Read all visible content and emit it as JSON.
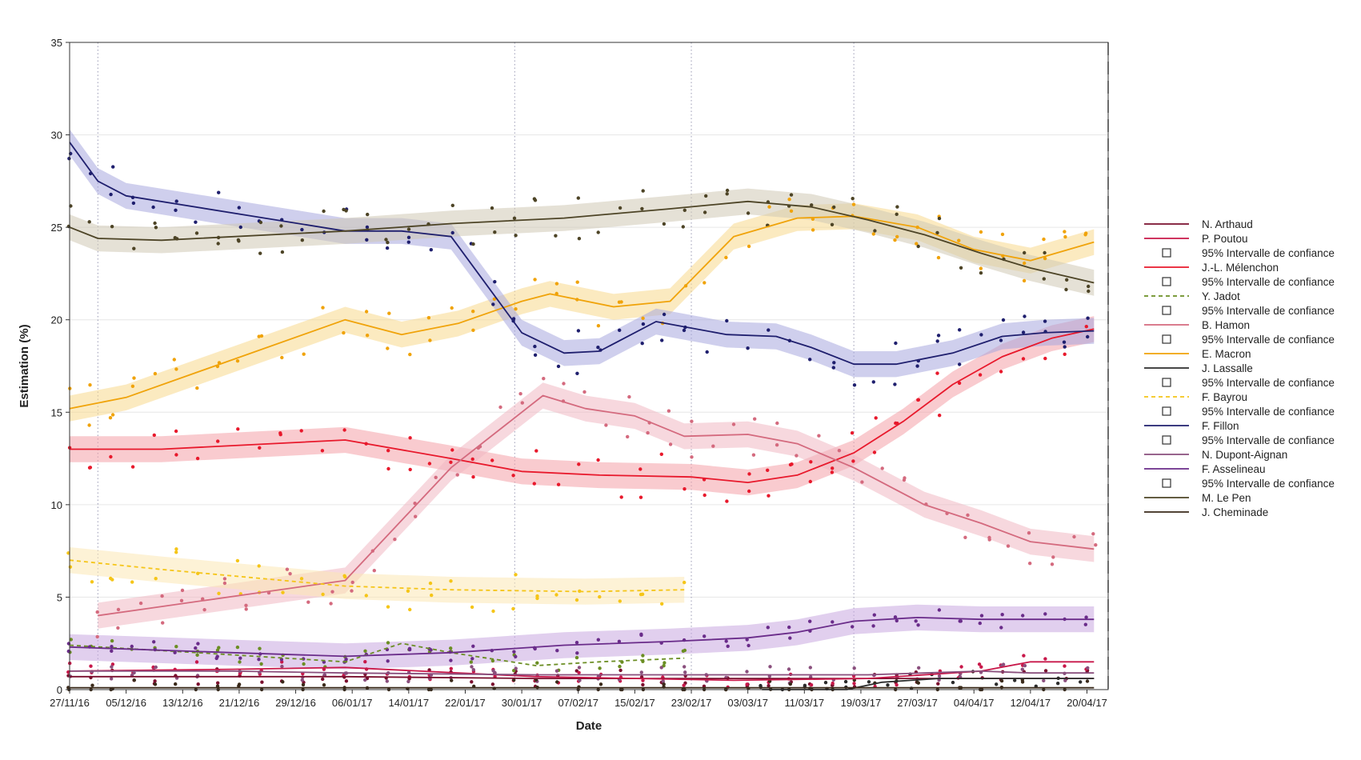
{
  "chart_data": {
    "type": "line",
    "title": "",
    "xlabel": "Date",
    "ylabel": "Estimation (%)",
    "ylim": [
      0,
      35
    ],
    "xlim": [
      "2016-11-27",
      "2017-04-23"
    ],
    "grid": "horizontal",
    "legend_position": "right",
    "y_ticks": [
      "0",
      "5",
      "10",
      "15",
      "20",
      "25",
      "30",
      "35"
    ],
    "x_ticks": [
      {
        "date": "2016-11-27",
        "label": "27/11/16"
      },
      {
        "date": "2016-12-05",
        "label": "05/12/16"
      },
      {
        "date": "2016-12-13",
        "label": "13/12/16"
      },
      {
        "date": "2016-12-21",
        "label": "21/12/16"
      },
      {
        "date": "2016-12-29",
        "label": "29/12/16"
      },
      {
        "date": "2017-01-06",
        "label": "06/01/17"
      },
      {
        "date": "2017-01-14",
        "label": "14/01/17"
      },
      {
        "date": "2017-01-22",
        "label": "22/01/17"
      },
      {
        "date": "2017-01-30",
        "label": "30/01/17"
      },
      {
        "date": "2017-02-07",
        "label": "07/02/17"
      },
      {
        "date": "2017-02-15",
        "label": "15/02/17"
      },
      {
        "date": "2017-02-23",
        "label": "23/02/17"
      },
      {
        "date": "2017-03-03",
        "label": "03/03/17"
      },
      {
        "date": "2017-03-11",
        "label": "11/03/17"
      },
      {
        "date": "2017-03-19",
        "label": "19/03/17"
      },
      {
        "date": "2017-03-27",
        "label": "27/03/17"
      },
      {
        "date": "2017-04-04",
        "label": "04/04/17"
      },
      {
        "date": "2017-04-12",
        "label": "12/04/17"
      },
      {
        "date": "2017-04-20",
        "label": "20/04/17"
      }
    ],
    "vlines_dotted": [
      "2016-12-01",
      "2017-01-29",
      "2017-02-23",
      "2017-03-18"
    ],
    "vline_dashed": "2017-04-23",
    "series": [
      {
        "name": "N. Arthaud",
        "color": "#7a0f2e",
        "style": "solid",
        "band": false,
        "x": [
          "2016-11-27",
          "2016-12-15",
          "2017-01-05",
          "2017-02-01",
          "2017-03-01",
          "2017-03-20",
          "2017-04-21"
        ],
        "y": [
          0.7,
          0.7,
          0.7,
          0.6,
          0.6,
          0.6,
          0.6
        ]
      },
      {
        "name": "P. Poutou",
        "color": "#c8184a",
        "style": "solid",
        "band": false,
        "x": [
          "2016-11-27",
          "2016-12-20",
          "2017-01-05",
          "2017-02-01",
          "2017-03-01",
          "2017-03-20",
          "2017-04-05",
          "2017-04-12",
          "2017-04-21"
        ],
        "y": [
          1.0,
          1.1,
          1.2,
          0.7,
          0.5,
          0.6,
          1.0,
          1.5,
          1.5
        ]
      },
      {
        "name": "J.-L. Mélenchon",
        "color": "#e8192c",
        "style": "solid",
        "band": true,
        "band_color": "#f4a0a8",
        "x": [
          "2016-11-27",
          "2016-12-10",
          "2017-01-05",
          "2017-01-20",
          "2017-01-30",
          "2017-02-10",
          "2017-02-23",
          "2017-03-03",
          "2017-03-10",
          "2017-03-18",
          "2017-03-25",
          "2017-04-01",
          "2017-04-08",
          "2017-04-15",
          "2017-04-21"
        ],
        "y": [
          13.0,
          13.0,
          13.5,
          12.5,
          11.8,
          11.6,
          11.5,
          11.2,
          11.6,
          12.8,
          14.5,
          16.5,
          18.0,
          19.0,
          19.5
        ]
      },
      {
        "name": "Y. Jadot",
        "color": "#6b8e23",
        "style": "dashed",
        "band": false,
        "x": [
          "2016-11-27",
          "2016-12-15",
          "2017-01-05",
          "2017-01-13",
          "2017-01-20",
          "2017-02-01",
          "2017-02-10",
          "2017-02-22"
        ],
        "y": [
          2.4,
          2.0,
          1.5,
          2.5,
          2.0,
          1.3,
          1.5,
          1.7
        ]
      },
      {
        "name": "B. Hamon",
        "color": "#d46a7e",
        "style": "solid",
        "band": true,
        "band_color": "#f1b8c3",
        "x": [
          "2016-12-01",
          "2017-01-05",
          "2017-01-20",
          "2017-02-02",
          "2017-02-08",
          "2017-02-15",
          "2017-02-22",
          "2017-03-03",
          "2017-03-10",
          "2017-03-18",
          "2017-03-28",
          "2017-04-05",
          "2017-04-12",
          "2017-04-21"
        ],
        "y": [
          4.0,
          5.9,
          12.0,
          15.9,
          15.2,
          14.8,
          13.7,
          13.8,
          13.3,
          12.0,
          10.0,
          9.0,
          8.0,
          7.6
        ]
      },
      {
        "name": "E. Macron",
        "color": "#f0a30a",
        "style": "solid",
        "band": true,
        "band_color": "#f8d98c",
        "x": [
          "2016-11-27",
          "2016-12-05",
          "2017-01-05",
          "2017-01-13",
          "2017-01-21",
          "2017-01-30",
          "2017-02-03",
          "2017-02-12",
          "2017-02-20",
          "2017-03-01",
          "2017-03-10",
          "2017-03-18",
          "2017-03-27",
          "2017-04-04",
          "2017-04-12",
          "2017-04-21"
        ],
        "y": [
          15.2,
          15.8,
          20.0,
          19.2,
          19.8,
          21.0,
          21.4,
          20.7,
          21.0,
          24.5,
          25.5,
          25.6,
          25.0,
          23.8,
          23.2,
          24.2
        ]
      },
      {
        "name": "J. Lassalle",
        "color": "#2b2b2b",
        "style": "solid",
        "band": false,
        "x": [
          "2017-03-05",
          "2017-03-17",
          "2017-03-22",
          "2017-03-30",
          "2017-04-05",
          "2017-04-12",
          "2017-04-21"
        ],
        "y": [
          0.0,
          0.0,
          0.4,
          0.6,
          0.6,
          0.6,
          0.6
        ]
      },
      {
        "name": "F. Bayrou",
        "color": "#f5c518",
        "style": "dashed",
        "band": true,
        "band_color": "#fbe7b4",
        "x": [
          "2016-11-27",
          "2016-12-10",
          "2017-01-05",
          "2017-01-20",
          "2017-02-08",
          "2017-02-22"
        ],
        "y": [
          7.0,
          6.5,
          5.6,
          5.4,
          5.3,
          5.4
        ]
      },
      {
        "name": "F. Fillon",
        "color": "#1f1f6e",
        "style": "solid",
        "band": true,
        "band_color": "#a8a8de",
        "x": [
          "2016-11-27",
          "2016-12-01",
          "2016-12-05",
          "2017-01-05",
          "2017-01-13",
          "2017-01-20",
          "2017-01-30",
          "2017-02-05",
          "2017-02-10",
          "2017-02-18",
          "2017-02-28",
          "2017-03-07",
          "2017-03-12",
          "2017-03-18",
          "2017-03-24",
          "2017-04-01",
          "2017-04-08",
          "2017-04-14",
          "2017-04-21"
        ],
        "y": [
          29.6,
          27.5,
          26.7,
          24.8,
          24.8,
          24.5,
          19.3,
          18.2,
          18.3,
          19.9,
          19.2,
          19.1,
          18.5,
          17.6,
          17.6,
          18.2,
          19.1,
          19.3,
          19.4
        ]
      },
      {
        "name": "N. Dupont-Aignan",
        "color": "#8a4f7d",
        "style": "solid",
        "band": false,
        "x": [
          "2016-11-27",
          "2016-12-20",
          "2017-01-05",
          "2017-02-01",
          "2017-03-01",
          "2017-03-20",
          "2017-03-28",
          "2017-04-05",
          "2017-04-12",
          "2017-04-21"
        ],
        "y": [
          1.0,
          1.0,
          0.9,
          0.8,
          0.8,
          0.8,
          0.9,
          1.0,
          0.9,
          0.9
        ]
      },
      {
        "name": "F. Asselineau",
        "color": "#6a2c8a",
        "style": "solid",
        "band": true,
        "band_color": "#c9a8e0",
        "x": [
          "2016-11-27",
          "2016-12-20",
          "2017-01-05",
          "2017-01-20",
          "2017-02-05",
          "2017-02-20",
          "2017-03-03",
          "2017-03-10",
          "2017-03-18",
          "2017-03-27",
          "2017-04-05",
          "2017-04-12",
          "2017-04-21"
        ],
        "y": [
          2.3,
          2.0,
          1.8,
          2.0,
          2.4,
          2.6,
          2.8,
          3.1,
          3.7,
          3.9,
          3.8,
          3.8,
          3.8
        ]
      },
      {
        "name": "M. Le Pen",
        "color": "#4d4426",
        "style": "solid",
        "band": true,
        "band_color": "#cfc8b4",
        "x": [
          "2016-11-27",
          "2016-12-01",
          "2016-12-10",
          "2017-01-05",
          "2017-01-20",
          "2017-02-05",
          "2017-02-20",
          "2017-03-03",
          "2017-03-12",
          "2017-03-20",
          "2017-03-28",
          "2017-04-05",
          "2017-04-12",
          "2017-04-21"
        ],
        "y": [
          25.0,
          24.4,
          24.3,
          24.8,
          25.2,
          25.5,
          26.0,
          26.4,
          26.1,
          25.4,
          24.6,
          23.6,
          22.8,
          22.0
        ]
      },
      {
        "name": "J. Cheminade",
        "color": "#3a2a1a",
        "style": "solid",
        "band": false,
        "x": [
          "2016-11-27",
          "2017-01-05",
          "2017-02-01",
          "2017-03-01",
          "2017-04-01",
          "2017-04-21"
        ],
        "y": [
          0.1,
          0.1,
          0.1,
          0.1,
          0.1,
          0.1
        ]
      }
    ],
    "legend": [
      {
        "label": "N. Arthaud",
        "kind": "line",
        "color": "#7a0f2e",
        "style": "solid"
      },
      {
        "label": "P. Poutou",
        "kind": "line",
        "color": "#c8184a",
        "style": "solid"
      },
      {
        "label": "95% Intervalle de confiance",
        "kind": "box"
      },
      {
        "label": "J.-L. Mélenchon",
        "kind": "line",
        "color": "#e8192c",
        "style": "solid"
      },
      {
        "label": "95% Intervalle de confiance",
        "kind": "box"
      },
      {
        "label": "Y. Jadot",
        "kind": "line",
        "color": "#6b8e23",
        "style": "dashed"
      },
      {
        "label": "95% Intervalle de confiance",
        "kind": "box"
      },
      {
        "label": "B. Hamon",
        "kind": "line",
        "color": "#d46a7e",
        "style": "solid"
      },
      {
        "label": "95% Intervalle de confiance",
        "kind": "box"
      },
      {
        "label": "E. Macron",
        "kind": "line",
        "color": "#f0a30a",
        "style": "solid"
      },
      {
        "label": "J. Lassalle",
        "kind": "line",
        "color": "#2b2b2b",
        "style": "solid"
      },
      {
        "label": "95% Intervalle de confiance",
        "kind": "box"
      },
      {
        "label": "F. Bayrou",
        "kind": "line",
        "color": "#f5c518",
        "style": "dashed"
      },
      {
        "label": "95% Intervalle de confiance",
        "kind": "box"
      },
      {
        "label": "F. Fillon",
        "kind": "line",
        "color": "#1f1f6e",
        "style": "solid"
      },
      {
        "label": "95% Intervalle de confiance",
        "kind": "box"
      },
      {
        "label": "N. Dupont-Aignan",
        "kind": "line",
        "color": "#8a4f7d",
        "style": "solid"
      },
      {
        "label": "F. Asselineau",
        "kind": "line",
        "color": "#6a2c8a",
        "style": "solid"
      },
      {
        "label": "95% Intervalle de confiance",
        "kind": "box"
      },
      {
        "label": "M. Le Pen",
        "kind": "line",
        "color": "#4d4426",
        "style": "solid"
      },
      {
        "label": "J. Cheminade",
        "kind": "line",
        "color": "#3a2a1a",
        "style": "solid"
      }
    ]
  }
}
